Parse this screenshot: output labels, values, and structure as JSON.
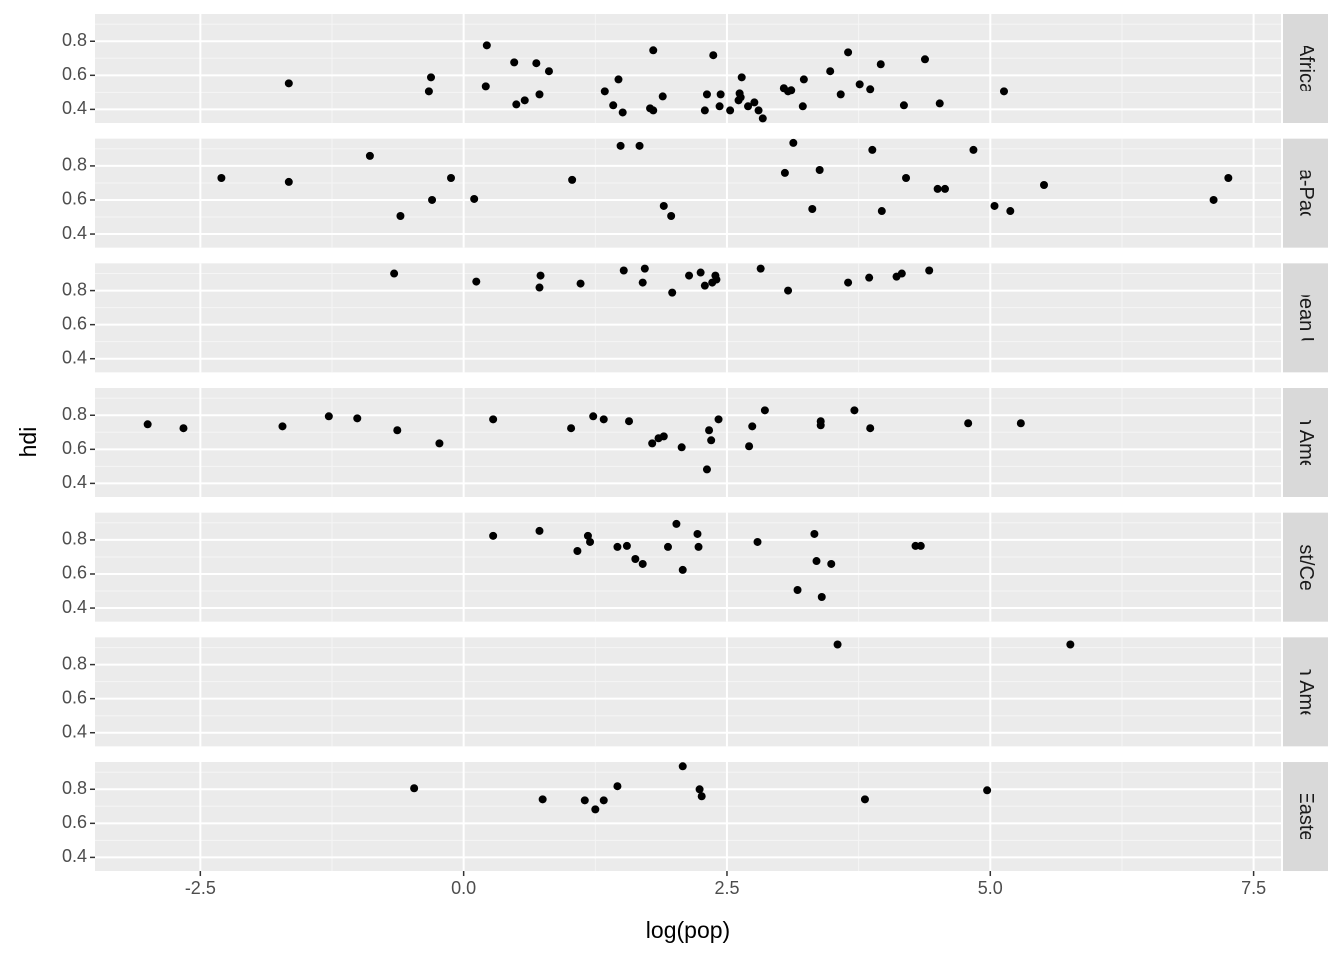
{
  "chart_data": {
    "type": "scatter",
    "x_label": "log(pop)",
    "y_label": "hdi",
    "xlim": [
      -3.5,
      7.76
    ],
    "xticks": [
      -2.5,
      {
        "value": 0,
        "label": "0.0"
      },
      2.5,
      {
        "value": 5,
        "label": "5.0"
      },
      7.5
    ],
    "ylim": [
      0.32,
      0.96
    ],
    "yticks": [
      0.4,
      0.6,
      0.8
    ],
    "grid": true,
    "point_color": "#000000",
    "panels": [
      {
        "label": "Africa",
        "x": [
          -1.66,
          0.22,
          -0.31,
          -0.33,
          0.21,
          0.48,
          0.69,
          0.81,
          0.5,
          0.58,
          0.72,
          1.34,
          1.42,
          1.47,
          1.51,
          1.8,
          1.77,
          1.8,
          1.89,
          2.29,
          2.31,
          2.37,
          2.43,
          2.44,
          2.53,
          2.62,
          2.63,
          2.61,
          2.64,
          2.7,
          2.76,
          2.8,
          2.84,
          3.04,
          3.08,
          3.11,
          3.23,
          3.22,
          3.48,
          3.58,
          3.65,
          3.76,
          3.86,
          3.96,
          4.18,
          4.38,
          4.52,
          5.13
        ],
        "y": [
          0.553,
          0.776,
          0.588,
          0.506,
          0.535,
          0.676,
          0.671,
          0.624,
          0.429,
          0.453,
          0.488,
          0.506,
          0.424,
          0.576,
          0.382,
          0.747,
          0.406,
          0.394,
          0.476,
          0.394,
          0.488,
          0.718,
          0.418,
          0.488,
          0.394,
          0.494,
          0.471,
          0.453,
          0.588,
          0.418,
          0.441,
          0.394,
          0.347,
          0.524,
          0.506,
          0.512,
          0.576,
          0.418,
          0.624,
          0.488,
          0.735,
          0.547,
          0.518,
          0.665,
          0.424,
          0.694,
          0.435,
          0.506
        ]
      },
      {
        "label": "Asia-Pacific",
        "x": [
          -2.3,
          -1.66,
          -0.89,
          -0.6,
          -0.3,
          -0.12,
          0.1,
          1.03,
          1.49,
          1.67,
          1.9,
          1.97,
          3.05,
          3.13,
          3.31,
          3.38,
          3.88,
          3.97,
          4.2,
          4.5,
          4.57,
          4.84,
          5.04,
          5.19,
          5.51,
          7.12,
          7.26
        ],
        "y": [
          0.729,
          0.706,
          0.859,
          0.506,
          0.6,
          0.729,
          0.606,
          0.718,
          0.918,
          0.918,
          0.565,
          0.506,
          0.759,
          0.935,
          0.547,
          0.776,
          0.894,
          0.535,
          0.729,
          0.665,
          0.665,
          0.894,
          0.565,
          0.535,
          0.688,
          0.6,
          0.729
        ]
      },
      {
        "label": "ropean Uni",
        "x": [
          -0.66,
          0.12,
          0.73,
          0.72,
          1.11,
          1.52,
          1.72,
          1.7,
          1.98,
          2.14,
          2.25,
          2.29,
          2.36,
          2.39,
          2.4,
          2.82,
          3.08,
          3.65,
          3.85,
          4.11,
          4.16,
          4.42
        ],
        "y": [
          0.9,
          0.853,
          0.888,
          0.818,
          0.841,
          0.918,
          0.929,
          0.847,
          0.788,
          0.888,
          0.906,
          0.829,
          0.847,
          0.888,
          0.865,
          0.929,
          0.8,
          0.847,
          0.876,
          0.882,
          0.9,
          0.918
        ]
      },
      {
        "label": "atin Americ",
        "x": [
          -3.0,
          -2.66,
          -1.72,
          -1.28,
          -1.01,
          -0.63,
          -0.23,
          0.28,
          1.02,
          1.23,
          1.33,
          1.57,
          1.79,
          1.85,
          1.9,
          2.07,
          2.31,
          2.33,
          2.35,
          2.42,
          2.71,
          2.74,
          2.86,
          3.39,
          3.39,
          3.71,
          3.86,
          4.79,
          5.29
        ],
        "y": [
          0.747,
          0.724,
          0.735,
          0.794,
          0.782,
          0.712,
          0.635,
          0.776,
          0.724,
          0.794,
          0.776,
          0.765,
          0.635,
          0.665,
          0.676,
          0.612,
          0.482,
          0.712,
          0.653,
          0.776,
          0.618,
          0.735,
          0.829,
          0.765,
          0.741,
          0.829,
          0.724,
          0.753,
          0.753
        ]
      },
      {
        "label": "East/Centr",
        "x": [
          0.28,
          0.72,
          1.08,
          1.18,
          1.2,
          1.46,
          1.55,
          1.63,
          1.7,
          1.94,
          2.02,
          2.08,
          2.22,
          2.23,
          2.79,
          3.17,
          3.33,
          3.35,
          3.4,
          3.49,
          4.29,
          4.34
        ],
        "y": [
          0.824,
          0.853,
          0.735,
          0.824,
          0.788,
          0.759,
          0.765,
          0.688,
          0.659,
          0.759,
          0.894,
          0.624,
          0.835,
          0.759,
          0.788,
          0.506,
          0.835,
          0.676,
          0.465,
          0.659,
          0.765,
          0.765
        ]
      },
      {
        "label": "orth Americ",
        "x": [
          3.55,
          5.76
        ],
        "y": [
          0.918,
          0.918
        ]
      },
      {
        "label": "n/Eastern",
        "x": [
          -0.47,
          0.75,
          1.15,
          1.25,
          1.33,
          1.46,
          2.08,
          2.24,
          2.26,
          3.81,
          4.97
        ],
        "y": [
          0.806,
          0.741,
          0.735,
          0.682,
          0.735,
          0.818,
          0.935,
          0.8,
          0.759,
          0.741,
          0.794
        ]
      }
    ]
  }
}
